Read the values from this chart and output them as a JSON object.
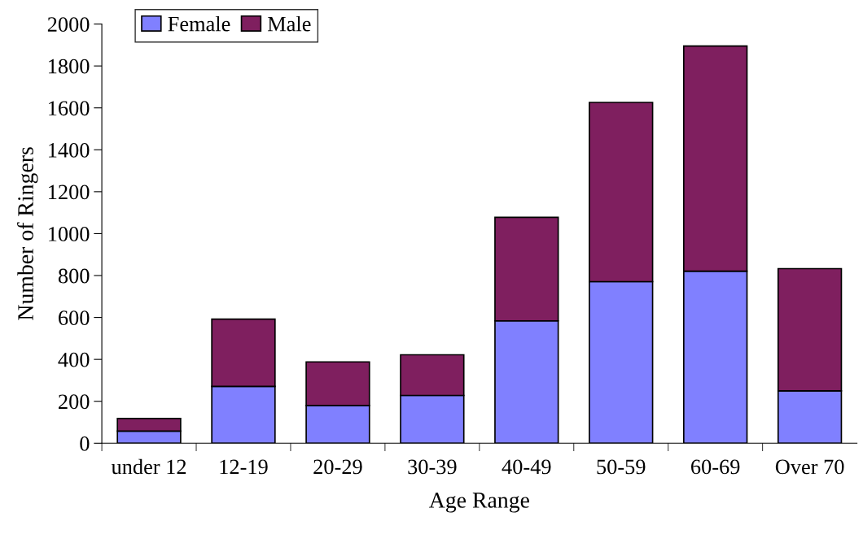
{
  "chart_data": {
    "type": "bar",
    "stacked": true,
    "xlabel": "Age Range",
    "ylabel": "Number of Ringers",
    "categories": [
      "under 12",
      "12-19",
      "20-29",
      "30-39",
      "40-49",
      "50-59",
      "60-69",
      "Over 70"
    ],
    "series": [
      {
        "name": "Female",
        "color": "#8080ff",
        "values": [
          58,
          271,
          180,
          228,
          584,
          771,
          821,
          250
        ]
      },
      {
        "name": "Male",
        "color": "#7f1f5f",
        "values": [
          60,
          321,
          208,
          194,
          494,
          855,
          1074,
          583
        ]
      }
    ],
    "ylim": [
      0,
      2000
    ],
    "yticks": [
      0,
      200,
      400,
      600,
      800,
      1000,
      1200,
      1400,
      1600,
      1800,
      2000
    ],
    "grid": false,
    "legend": "top left"
  }
}
